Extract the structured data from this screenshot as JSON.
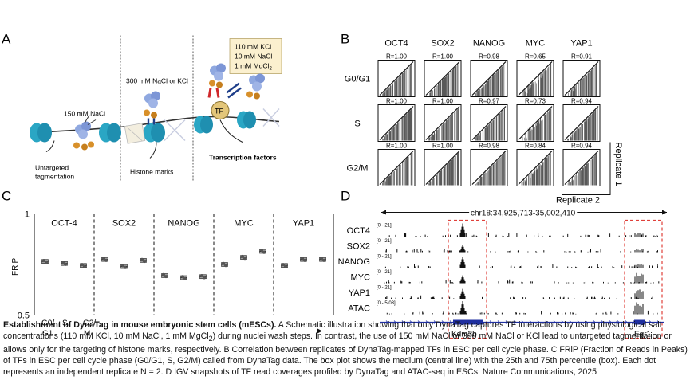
{
  "panels": {
    "a": {
      "letter": "A",
      "condition_150": "150 mM NaCl",
      "condition_300": "300 mM NaCl or KCl",
      "condition_box": [
        "110 mM KCl",
        "10 mM NaCl",
        "1 mM MgCl",
        "2"
      ],
      "tf_label": "TF",
      "outcome_untargeted": [
        "Untargeted",
        "tagmentation"
      ],
      "outcome_histone": "Histone marks",
      "outcome_tf": "Transcription factors"
    },
    "b": {
      "letter": "B",
      "columns": [
        "OCT4",
        "SOX2",
        "NANOG",
        "MYC",
        "YAP1"
      ],
      "rows": [
        "G0/G1",
        "S",
        "G2/M"
      ],
      "r_values": [
        [
          "R=1.00",
          "R=1.00",
          "R=0.98",
          "R=0.65",
          "R=0.91"
        ],
        [
          "R=1.00",
          "R=1.00",
          "R=0.97",
          "R=0.73",
          "R=0.94"
        ],
        [
          "R=1.00",
          "R=1.00",
          "R=0.98",
          "R=0.84",
          "R=0.94"
        ]
      ],
      "replicate_x": "Replicate 2",
      "replicate_y": "Replicate 1"
    },
    "c": {
      "letter": "C",
      "groups": [
        "OCT-4",
        "SOX2",
        "NANOG",
        "MYC",
        "YAP1"
      ],
      "ylabel": "FRiP",
      "y_ticks": [
        "1",
        "0.5"
      ],
      "x_phases": [
        "G0/",
        "S",
        "G2/"
      ],
      "x_phases_2": [
        "G1",
        "",
        "M"
      ]
    },
    "d": {
      "letter": "D",
      "locus": "chr18:34,925,713-35,002,410",
      "tracks": [
        {
          "name": "OCT4",
          "range": "[0 - 21]",
          "peak1": 1.0,
          "peak2": 0.3
        },
        {
          "name": "SOX2",
          "range": "[0 - 21]",
          "peak1": 0.55,
          "peak2": 0.25
        },
        {
          "name": "NANOG",
          "range": "[0 - 21]",
          "peak1": 0.85,
          "peak2": 0.3
        },
        {
          "name": "MYC",
          "range": "[0 - 21]",
          "peak1": 0.6,
          "peak2": 0.9
        },
        {
          "name": "YAP1",
          "range": "[0 - 21]",
          "peak1": 0.75,
          "peak2": 0.8
        },
        {
          "name": "ATAC",
          "range": "[0 - 5.03]",
          "peak1": 1.0,
          "peak2": 0.95
        }
      ],
      "genes": [
        "Kdm3b",
        "Egr1"
      ]
    }
  },
  "chart_data": {
    "type": "scatter",
    "ylabel": "FRiP",
    "ylim": [
      0.5,
      1
    ],
    "groups": [
      "OCT-4",
      "SOX2",
      "NANOG",
      "MYC",
      "YAP1"
    ],
    "x_phases": [
      "G0/G1",
      "S",
      "G2/M"
    ],
    "series": [
      {
        "name": "OCT-4",
        "values": [
          0.765,
          0.755,
          0.745
        ]
      },
      {
        "name": "SOX2",
        "values": [
          0.775,
          0.74,
          0.77
        ]
      },
      {
        "name": "NANOG",
        "values": [
          0.695,
          0.685,
          0.69
        ]
      },
      {
        "name": "MYC",
        "values": [
          0.75,
          0.785,
          0.815
        ]
      },
      {
        "name": "YAP1",
        "values": [
          0.745,
          0.775,
          0.775
        ]
      }
    ]
  },
  "caption": {
    "title": "Establishment of DynaTag in mouse embryonic stem cells (mESCs).",
    "lines": [
      " A Schematic illustration showing that only DynaTag captures TF interactions by using physiological salt",
      "concentrations (110 mM KCl, 10 mM NaCl, 1 mM MgCl",
      "2",
      ") during nuclei wash steps. In contrast, the use of 150 mM NaCl or 300 mM NaCl or KCl lead to untargeted tagmentation or",
      "allows only for the targeting of histone marks, respectively. B Correlation between replicates of DynaTag-mapped TFs in ESC per cell cycle phase. C FRiP (Fraction of Reads in Peaks)",
      "of TFs in ESC per cell cycle phase (G0/G1, S, G2/M) called from DynaTag data. The box plot shows the medium (central line) with the 25th and 75th percentile (box). Each dot",
      "represents an independent replicate N = 2. D IGV snapshots of TF read coverages profiled by DynaTag and ATAC-seq in ESCs. Nature Communications, 2025"
    ]
  },
  "colors": {
    "nucleosome": "#2aa6c4",
    "tn5": "#8fa8e0",
    "protein_a": "#d8902a",
    "antibody_red": "#d0282c",
    "antibody_blue": "#1f3f8a",
    "track": "#111111",
    "gene": "#1f2fa0",
    "dashed_box": "#e0403a"
  }
}
